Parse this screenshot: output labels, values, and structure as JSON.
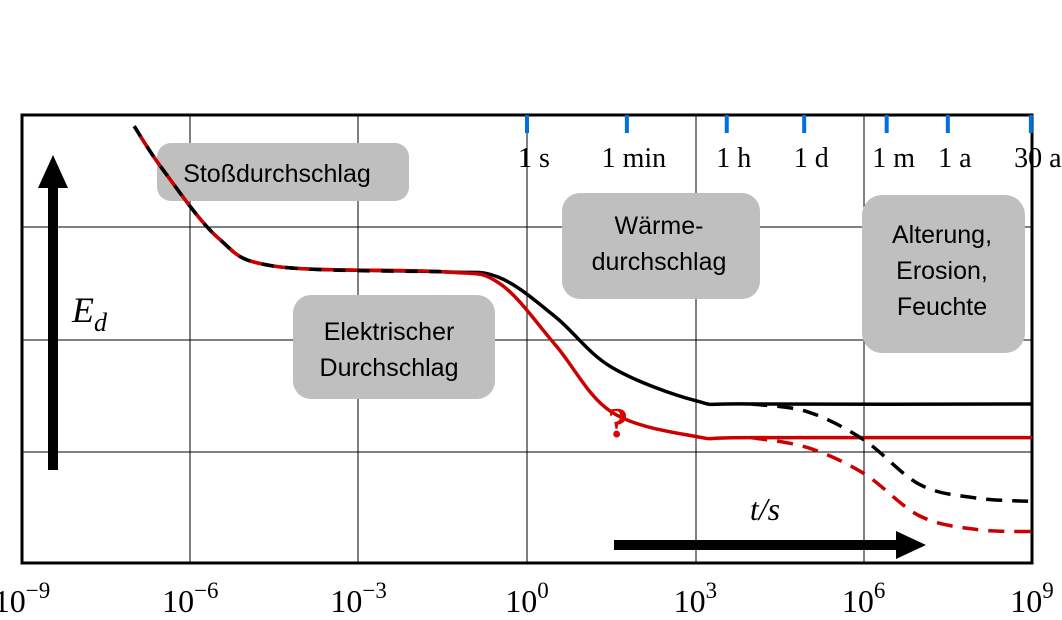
{
  "chart_data": {
    "type": "line",
    "x_scale": "log10",
    "xlim": [
      "10^-9",
      "10^9"
    ],
    "y_scale": "none",
    "grid": true,
    "x_tick_labels": [
      {
        "base": "10",
        "exp": "−9"
      },
      {
        "base": "10",
        "exp": "−6"
      },
      {
        "base": "10",
        "exp": "−3"
      },
      {
        "base": "10",
        "exp": "0"
      },
      {
        "base": "10",
        "exp": "3"
      },
      {
        "base": "10",
        "exp": "6"
      },
      {
        "base": "10",
        "exp": "9"
      }
    ],
    "time_markers": [
      {
        "label": "1 s",
        "exp10": 0
      },
      {
        "label": "1 min",
        "exp10": 1.78
      },
      {
        "label": "1 h",
        "exp10": 3.56
      },
      {
        "label": "1 d",
        "exp10": 4.94
      },
      {
        "label": "1 m",
        "exp10": 6.41
      },
      {
        "label": "1 a",
        "exp10": 7.5
      },
      {
        "label": "30 a",
        "exp10": 8.98
      }
    ],
    "x_axis_label": "t/s",
    "y_axis_label": "E",
    "y_axis_label_sub": "d",
    "regions": [
      {
        "label": "Stoßdurchschlag"
      },
      {
        "label": "Elektrischer Durchschlag"
      },
      {
        "label": "Wärme- durchschlag"
      },
      {
        "label": "Alterung, Erosion, Feuchte"
      }
    ],
    "question_mark": "?",
    "series": [
      {
        "color": "#000000",
        "style": "solid",
        "points": [
          [
            -7.0,
            3.9
          ],
          [
            -6.5,
            3.52
          ],
          [
            -5.5,
            2.9
          ],
          [
            -4.5,
            2.65
          ],
          [
            -1.5,
            2.6
          ],
          [
            -0.5,
            2.55
          ],
          [
            0.5,
            2.2
          ],
          [
            1.5,
            1.75
          ],
          [
            3.0,
            1.45
          ],
          [
            4.0,
            1.42
          ],
          [
            9.0,
            1.42
          ]
        ]
      },
      {
        "color": "#000000",
        "style": "dashed",
        "points": [
          [
            4.0,
            1.42
          ],
          [
            5.0,
            1.35
          ],
          [
            6.0,
            1.1
          ],
          [
            7.0,
            0.7
          ],
          [
            8.0,
            0.58
          ],
          [
            9.0,
            0.55
          ]
        ]
      },
      {
        "color": "#cc0000",
        "style": "solid",
        "points": [
          [
            -7.0,
            3.9
          ],
          [
            -6.5,
            3.52
          ],
          [
            -5.5,
            2.9
          ],
          [
            -4.5,
            2.65
          ],
          [
            -1.5,
            2.6
          ],
          [
            -0.5,
            2.5
          ],
          [
            0.5,
            1.95
          ],
          [
            1.5,
            1.35
          ],
          [
            3.0,
            1.13
          ],
          [
            4.0,
            1.12
          ],
          [
            9.0,
            1.12
          ]
        ]
      },
      {
        "color": "#cc0000",
        "style": "dashed",
        "points": [
          [
            4.0,
            1.12
          ],
          [
            5.0,
            1.03
          ],
          [
            6.0,
            0.8
          ],
          [
            7.0,
            0.42
          ],
          [
            8.0,
            0.3
          ],
          [
            9.0,
            0.28
          ]
        ]
      }
    ]
  }
}
